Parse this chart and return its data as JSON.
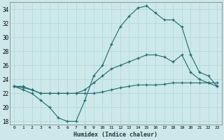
{
  "xlabel": "Humidex (Indice chaleur)",
  "xlim": [
    -0.5,
    23.5
  ],
  "ylim": [
    17.5,
    35.0
  ],
  "xticks": [
    0,
    1,
    2,
    3,
    4,
    5,
    6,
    7,
    8,
    9,
    10,
    11,
    12,
    13,
    14,
    15,
    16,
    17,
    18,
    19,
    20,
    21,
    22,
    23
  ],
  "yticks": [
    18,
    20,
    22,
    24,
    26,
    28,
    30,
    32,
    34
  ],
  "bg_color": "#cde8ea",
  "line_color": "#1e6b6b",
  "grid_color": "#b0d4d6",
  "line1_x": [
    0,
    1,
    2,
    3,
    4,
    5,
    6,
    7,
    8,
    9,
    10,
    11,
    12,
    13,
    14,
    15,
    16,
    17,
    18,
    19,
    20,
    21,
    22,
    23
  ],
  "line1_y": [
    23.0,
    22.5,
    22.0,
    21.0,
    20.0,
    18.5,
    18.0,
    18.0,
    21.0,
    24.5,
    26.0,
    29.0,
    31.5,
    33.0,
    34.2,
    34.5,
    33.5,
    32.5,
    32.5,
    31.5,
    27.5,
    25.0,
    24.5,
    23.0
  ],
  "line2_x": [
    0,
    1,
    2,
    3,
    4,
    5,
    6,
    7,
    8,
    9,
    10,
    11,
    12,
    13,
    14,
    15,
    16,
    17,
    18,
    19,
    20,
    21,
    22,
    23
  ],
  "line2_y": [
    23.0,
    22.8,
    22.5,
    22.0,
    22.0,
    22.0,
    22.0,
    22.0,
    22.0,
    22.0,
    22.2,
    22.5,
    22.8,
    23.0,
    23.2,
    23.2,
    23.2,
    23.3,
    23.5,
    23.5,
    23.5,
    23.5,
    23.5,
    23.5
  ],
  "line3_x": [
    0,
    1,
    2,
    3,
    4,
    5,
    6,
    7,
    8,
    9,
    10,
    11,
    12,
    13,
    14,
    15,
    16,
    17,
    18,
    19,
    20,
    21,
    22,
    23
  ],
  "line3_y": [
    23.0,
    23.0,
    22.5,
    22.0,
    22.0,
    22.0,
    22.0,
    22.0,
    22.5,
    23.5,
    24.5,
    25.5,
    26.0,
    26.5,
    27.0,
    27.5,
    27.5,
    27.2,
    26.5,
    27.5,
    25.0,
    24.0,
    23.5,
    23.0
  ],
  "figsize": [
    3.2,
    2.0
  ],
  "dpi": 100
}
